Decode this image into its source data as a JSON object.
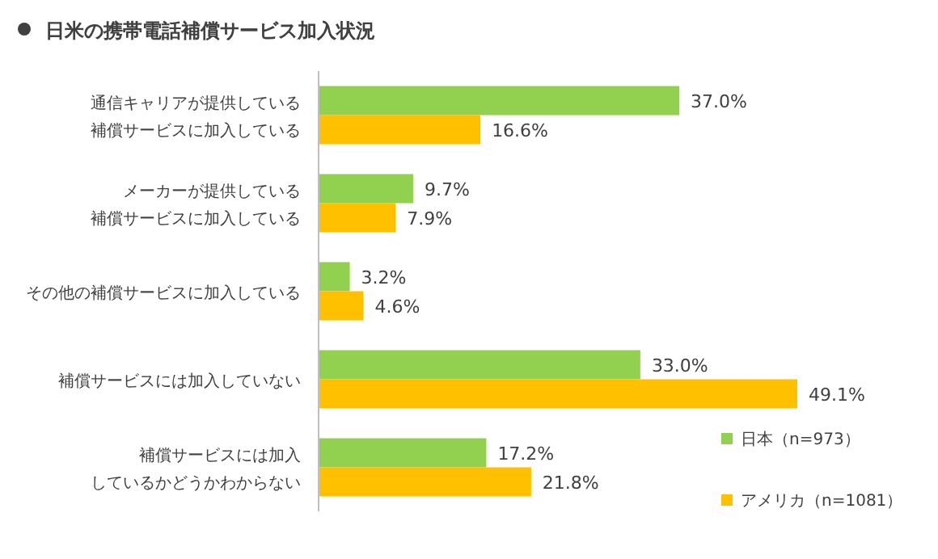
{
  "chart_data": {
    "type": "bar",
    "orientation": "horizontal",
    "title": "日米の携帯電話補償サービス加入状況",
    "categories": [
      "通信キャリアが提供している補償サービスに加入している",
      "メーカーが提供している補償サービスに加入している",
      "その他の補償サービスに加入している",
      "補償サービスには加入していない",
      "補償サービスには加入しているかどうかわからない"
    ],
    "series": [
      {
        "name": "日本（n=973）",
        "color": "#92d050",
        "values": [
          37.0,
          9.7,
          3.2,
          33.0,
          17.2
        ],
        "value_labels": [
          "37.0%",
          "9.7%",
          "3.2%",
          "33.0%",
          "17.2%"
        ]
      },
      {
        "name": "アメリカ（n=1081）",
        "color": "#ffc000",
        "values": [
          16.6,
          7.9,
          4.6,
          49.1,
          21.8
        ],
        "value_labels": [
          "16.6%",
          "7.9%",
          "4.6%",
          "49.1%",
          "21.8%"
        ]
      }
    ],
    "legend": "bottom right"
  }
}
